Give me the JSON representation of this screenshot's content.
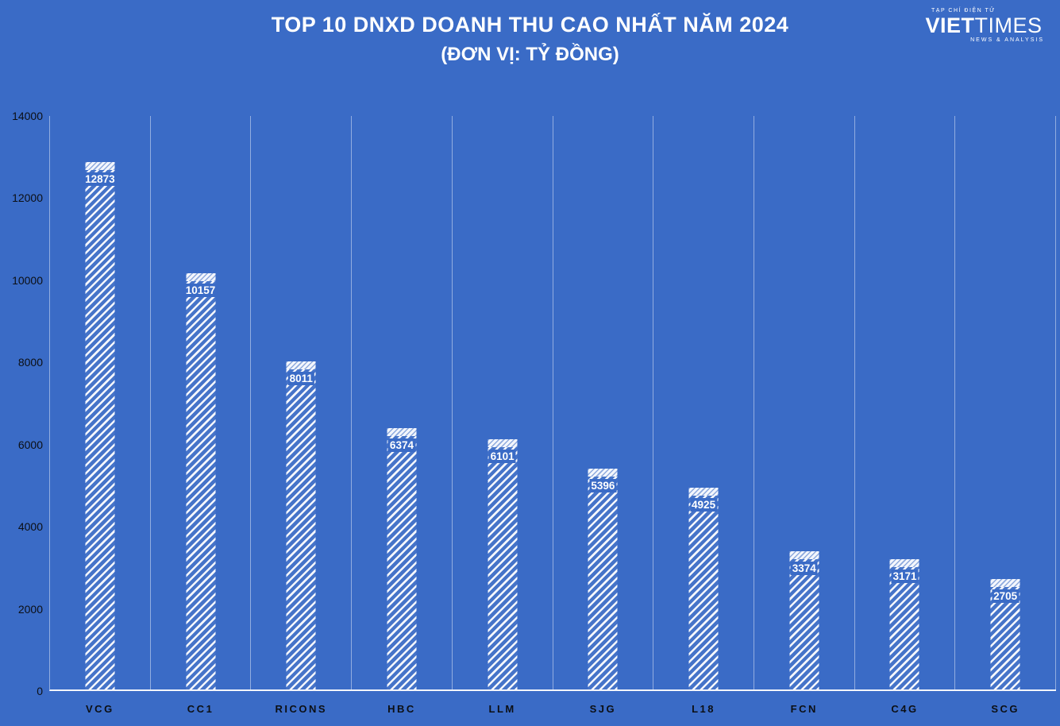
{
  "header": {
    "title_line1": "TOP 10 DNXD DOANH THU CAO NHẤT NĂM 2024",
    "title_line2": "(ĐƠN VỊ: TỶ ĐỒNG)"
  },
  "logo": {
    "tagline_top": "TẠP CHÍ ĐIỆN TỬ",
    "name_part1": "VIET",
    "name_part2": "TIMES",
    "tagline_bottom": "NEWS & ANALYSIS"
  },
  "colors": {
    "background": "#3a6bc6",
    "bar_hatch": "#ffffff",
    "gridline": "rgba(255,255,255,0.45)",
    "value_label": "#ffffff",
    "axis_text": "#0c0f14"
  },
  "chart_data": {
    "type": "bar",
    "title": "TOP 10 DNXD DOANH THU CAO NHẤT NĂM 2024",
    "subtitle": "(ĐƠN VỊ: TỶ ĐỒNG)",
    "categories": [
      "VCG",
      "CC1",
      "RICONS",
      "HBC",
      "LLM",
      "SJG",
      "L18",
      "FCN",
      "C4G",
      "SCG"
    ],
    "values": [
      12873,
      10157,
      8011,
      6374,
      6101,
      5396,
      4925,
      3374,
      3171,
      2705
    ],
    "xlabel": "",
    "ylabel": "",
    "ylim": [
      0,
      14000
    ],
    "yticks": [
      0,
      2000,
      4000,
      6000,
      8000,
      10000,
      12000,
      14000
    ],
    "grid": "vertical-only",
    "legend": "none",
    "bar_style": "white diagonal hatch on blue background, value labels inside near top"
  }
}
